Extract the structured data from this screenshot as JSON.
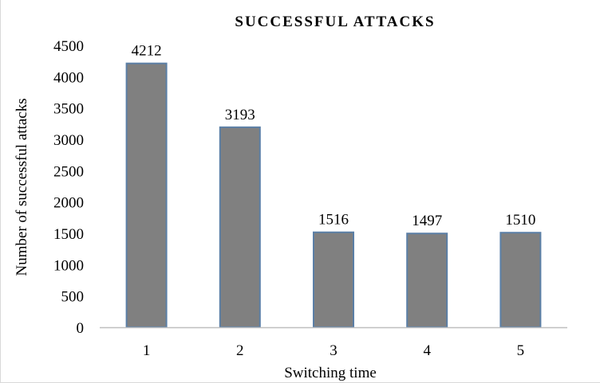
{
  "chart_data": {
    "type": "bar",
    "title": "SUCCESSFUL ATTACKS",
    "xlabel": "Switching time",
    "ylabel": "Number of successful attacks",
    "categories": [
      "1",
      "2",
      "3",
      "4",
      "5"
    ],
    "values": [
      4212,
      3193,
      1516,
      1497,
      1510
    ],
    "data_labels": [
      "4212",
      "3193",
      "1516",
      "1497",
      "1510"
    ],
    "ylim": [
      0,
      4500
    ],
    "yticks": [
      "0",
      "500",
      "1000",
      "1500",
      "2000",
      "2500",
      "3000",
      "3500",
      "4000",
      "4500"
    ],
    "grid": false,
    "legend": "none",
    "colors": {
      "bar_fill": "#808080",
      "bar_stroke": "#5b7fa6",
      "axis": "#bfbfbf"
    }
  }
}
